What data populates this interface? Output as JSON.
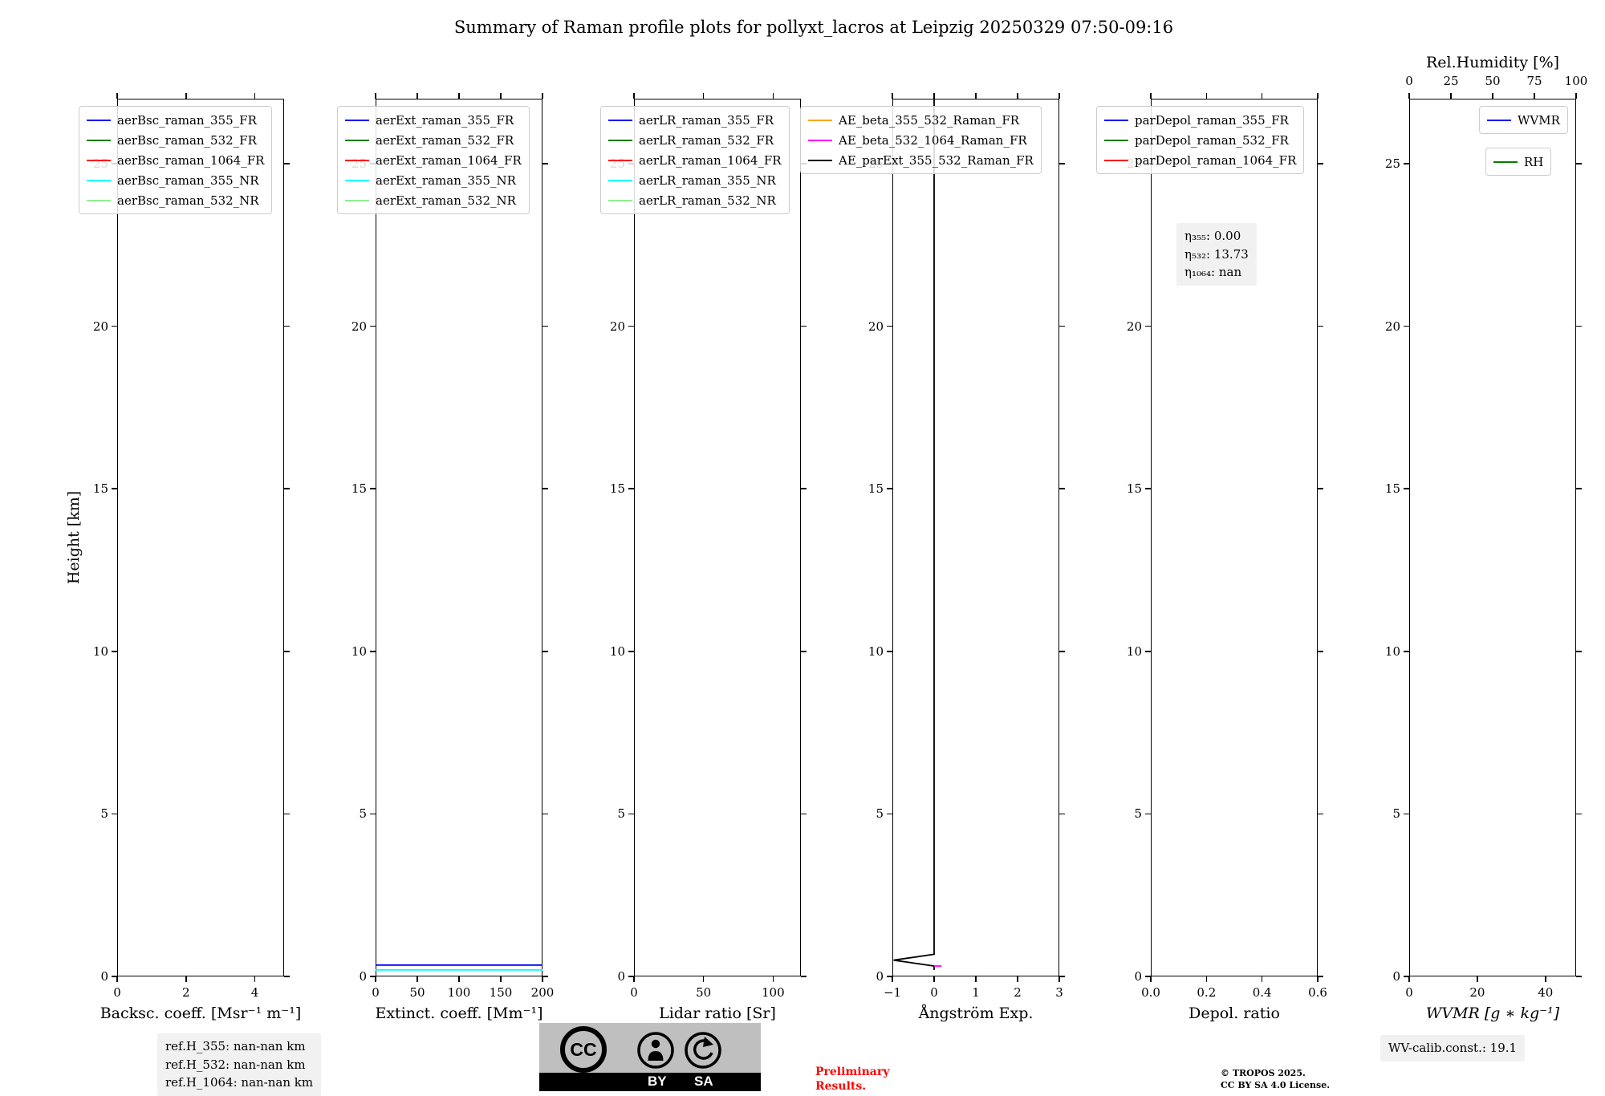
{
  "title": "Summary of Raman profile plots for pollyxt_lacros at Leipzig 20250329 07:50-09:16",
  "height_axis": {
    "label": "Height [km]",
    "lim": [
      0,
      27
    ],
    "ticks": [
      {
        "v": 0,
        "label": "0"
      },
      {
        "v": 5,
        "label": "5"
      },
      {
        "v": 10,
        "label": "10"
      },
      {
        "v": 15,
        "label": "15"
      },
      {
        "v": 20,
        "label": "20"
      },
      {
        "v": 25,
        "label": "25"
      }
    ]
  },
  "chart_data": [
    {
      "id": "backscatter",
      "type": "line",
      "xlabel": "Backsc. coeff. [Msr⁻¹ m⁻¹]",
      "xlim": [
        0,
        4.85
      ],
      "xticks": [
        {
          "v": 0,
          "label": "0"
        },
        {
          "v": 2,
          "label": "2"
        },
        {
          "v": 4,
          "label": "4"
        }
      ],
      "legend": [
        {
          "label": "aerBsc_raman_355_FR",
          "color": "#0000ff"
        },
        {
          "label": "aerBsc_raman_532_FR",
          "color": "#007f00"
        },
        {
          "label": "aerBsc_raman_1064_FR",
          "color": "#ff0000"
        },
        {
          "label": "aerBsc_raman_355_NR",
          "color": "#00ffff"
        },
        {
          "label": "aerBsc_raman_532_NR",
          "color": "#90ee90"
        }
      ],
      "series": []
    },
    {
      "id": "extinction",
      "type": "line",
      "xlabel": "Extinct. coeff. [Mm⁻¹]",
      "xlim": [
        0,
        200
      ],
      "xticks": [
        {
          "v": 0,
          "label": "0"
        },
        {
          "v": 50,
          "label": "50"
        },
        {
          "v": 100,
          "label": "100"
        },
        {
          "v": 150,
          "label": "150"
        },
        {
          "v": 200,
          "label": "200"
        }
      ],
      "legend": [
        {
          "label": "aerExt_raman_355_FR",
          "color": "#0000ff"
        },
        {
          "label": "aerExt_raman_532_FR",
          "color": "#007f00"
        },
        {
          "label": "aerExt_raman_1064_FR",
          "color": "#ff0000"
        },
        {
          "label": "aerExt_raman_355_NR",
          "color": "#00ffff"
        },
        {
          "label": "aerExt_raman_532_NR",
          "color": "#90ee90"
        }
      ],
      "series": [
        {
          "name": "aerExt_raman_355_FR",
          "color": "#0000ff",
          "points": [
            [
              0,
              0.35
            ],
            [
              200,
              0.35
            ]
          ]
        },
        {
          "name": "aerExt_raman_355_NR",
          "color": "#00ffff",
          "points": [
            [
              0,
              0.2
            ],
            [
              200,
              0.2
            ]
          ]
        }
      ]
    },
    {
      "id": "lidar-ratio",
      "type": "line",
      "xlabel": "Lidar ratio [Sr]",
      "xlim": [
        0,
        120
      ],
      "xticks": [
        {
          "v": 0,
          "label": "0"
        },
        {
          "v": 50,
          "label": "50"
        },
        {
          "v": 100,
          "label": "100"
        }
      ],
      "legend": [
        {
          "label": "aerLR_raman_355_FR",
          "color": "#0000ff"
        },
        {
          "label": "aerLR_raman_532_FR",
          "color": "#007f00"
        },
        {
          "label": "aerLR_raman_1064_FR",
          "color": "#ff0000"
        },
        {
          "label": "aerLR_raman_355_NR",
          "color": "#00ffff"
        },
        {
          "label": "aerLR_raman_532_NR",
          "color": "#90ee90"
        }
      ],
      "series": []
    },
    {
      "id": "angstrom",
      "type": "line",
      "xlabel": "Ångström Exp.",
      "xlim": [
        -1,
        3
      ],
      "xticks": [
        {
          "v": -1,
          "label": "−1"
        },
        {
          "v": 0,
          "label": "0"
        },
        {
          "v": 1,
          "label": "1"
        },
        {
          "v": 2,
          "label": "2"
        },
        {
          "v": 3,
          "label": "3"
        }
      ],
      "legend": [
        {
          "label": "AE_beta_355_532_Raman_FR",
          "color": "#ffa500"
        },
        {
          "label": "AE_beta_532_1064_Raman_FR",
          "color": "#ff00ff"
        },
        {
          "label": "AE_parExt_355_532_Raman_FR",
          "color": "#000000"
        }
      ],
      "series": [
        {
          "name": "AE_parExt_355_532_Raman_FR",
          "color": "#000000",
          "points": [
            [
              0,
              27
            ],
            [
              0,
              0.68
            ],
            [
              -0.97,
              0.5
            ],
            [
              0,
              0.32
            ],
            [
              0,
              0.2
            ]
          ]
        },
        {
          "name": "AE_beta_532_1064_Raman_FR",
          "color": "#ff00ff",
          "points": [
            [
              0,
              0.32
            ],
            [
              0.18,
              0.32
            ]
          ]
        }
      ]
    },
    {
      "id": "depol",
      "type": "line",
      "xlabel": "Depol. ratio",
      "xlim": [
        0,
        0.6
      ],
      "xticks": [
        {
          "v": 0,
          "label": "0.0"
        },
        {
          "v": 0.2,
          "label": "0.2"
        },
        {
          "v": 0.4,
          "label": "0.4"
        },
        {
          "v": 0.6,
          "label": "0.6"
        }
      ],
      "legend": [
        {
          "label": "parDepol_raman_355_FR",
          "color": "#0000ff"
        },
        {
          "label": "parDepol_raman_532_FR",
          "color": "#007f00"
        },
        {
          "label": "parDepol_raman_1064_FR",
          "color": "#ff0000"
        }
      ],
      "series": []
    },
    {
      "id": "wvmr",
      "type": "line",
      "xlabel": "WVMR [g ∗ kg⁻¹]",
      "xlabel_italic": true,
      "xlim": [
        0,
        49
      ],
      "xticks": [
        {
          "v": 0,
          "label": "0"
        },
        {
          "v": 20,
          "label": "20"
        },
        {
          "v": 40,
          "label": "40"
        }
      ],
      "top_axis": {
        "label": "Rel.Humidity [%]",
        "xlim": [
          0,
          100
        ],
        "ticks": [
          {
            "v": 0,
            "label": "0"
          },
          {
            "v": 25,
            "label": "25"
          },
          {
            "v": 50,
            "label": "50"
          },
          {
            "v": 75,
            "label": "75"
          },
          {
            "v": 100,
            "label": "100"
          }
        ]
      },
      "legend": [
        {
          "label": "WVMR",
          "color": "#0000ff"
        },
        {
          "label": "RH",
          "color": "#007f00"
        }
      ],
      "legend_style": "stacked-right",
      "series": []
    }
  ],
  "annotations": {
    "eta": [
      "η₃₅₅: 0.00",
      "η₅₃₂: 13.73",
      "η₁₀₆₄: nan"
    ],
    "ref_h": [
      "ref.H_355: nan-nan km",
      "ref.H_532: nan-nan km",
      "ref.H_1064: nan-nan km"
    ],
    "wv_calib": "WV-calib.const.: 19.1",
    "preliminary": [
      "Preliminary",
      "Results."
    ],
    "credit": [
      "© TROPOS 2025.",
      "CC BY SA 4.0 License."
    ],
    "badge": {
      "cc": "CC",
      "by": "BY",
      "sa": "SA"
    }
  }
}
